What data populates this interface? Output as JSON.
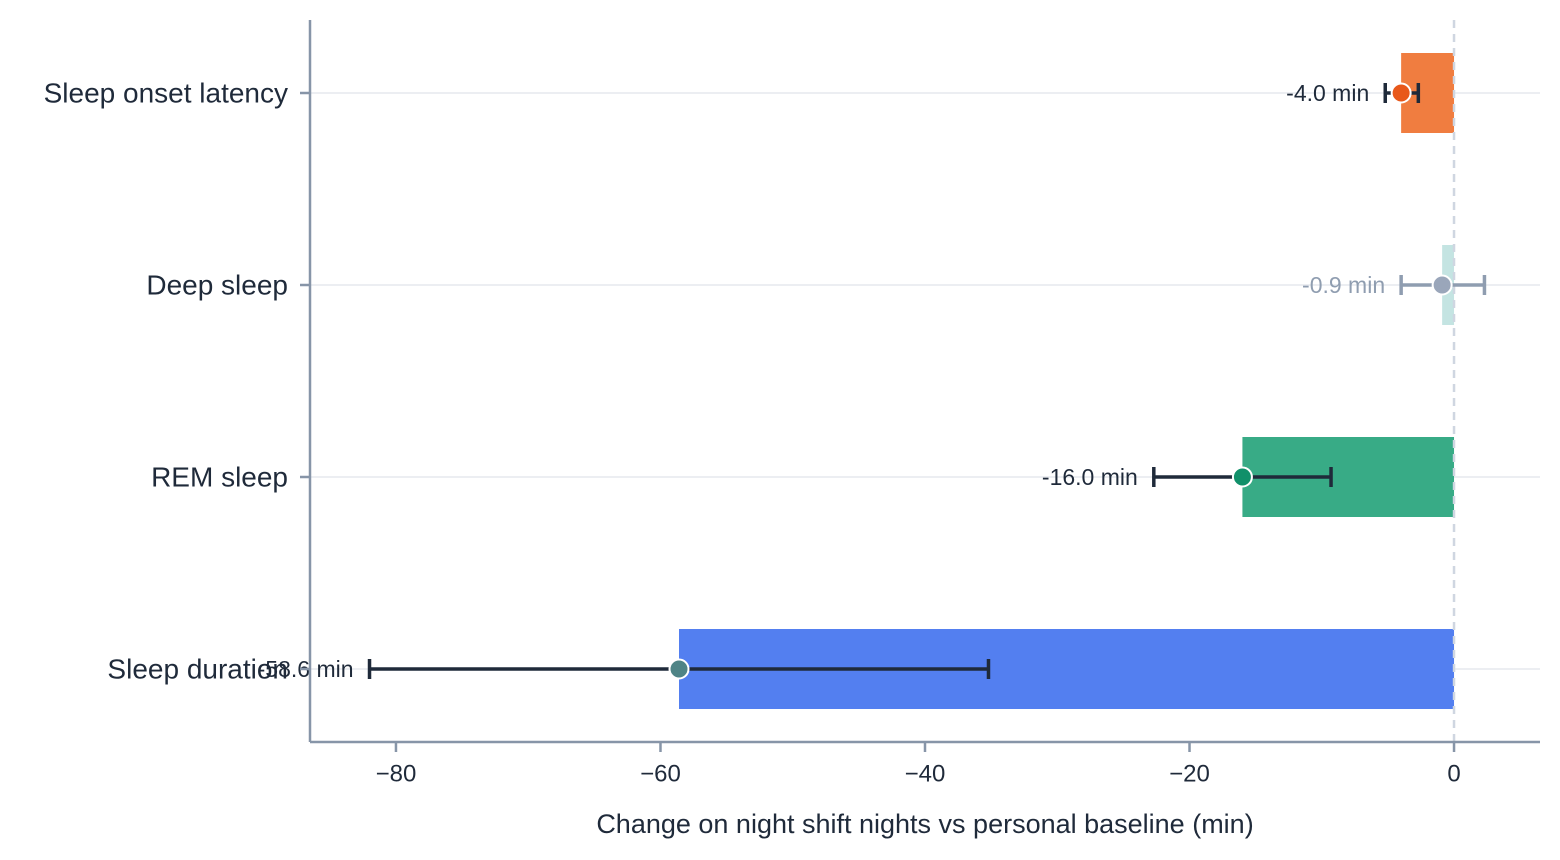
{
  "chart_data": {
    "type": "bar",
    "orientation": "horizontal",
    "categories": [
      "Sleep onset latency",
      "Deep sleep",
      "REM sleep",
      "Sleep duration"
    ],
    "values": [
      -4.0,
      -0.9,
      -16.0,
      -58.6
    ],
    "error_low": [
      -5.2,
      -4.0,
      -22.7,
      -82.0
    ],
    "error_high": [
      -2.7,
      2.3,
      -9.3,
      -35.2
    ],
    "value_labels": [
      "-4.0 min",
      "-0.9 min",
      "-16.0 min",
      "-58.6 min"
    ],
    "bar_colors": [
      "#f07d40",
      "#c4e4e2",
      "#38ab86",
      "#537ff0"
    ],
    "point_colors": [
      "#e8581a",
      "#9aa6ba",
      "#11906a",
      "#4f8486"
    ],
    "errorbar_colors": [
      "#1f2a3a",
      "#8f9db0",
      "#1f2a3a",
      "#1f2a3a"
    ],
    "label_colors": [
      "#1f2a3a",
      "#8f9db0",
      "#1f2a3a",
      "#1f2a3a"
    ],
    "xlabel": "Change on night shift nights vs personal baseline (min)",
    "ylabel": "",
    "title": "",
    "xlim": [
      -86.5,
      6.5
    ],
    "xticks": [
      -80,
      -60,
      -40,
      -20,
      0
    ],
    "xtick_labels": [
      "−80",
      "−60",
      "−40",
      "−20",
      "0"
    ],
    "reference_line": 0,
    "grid": "horizontal"
  }
}
